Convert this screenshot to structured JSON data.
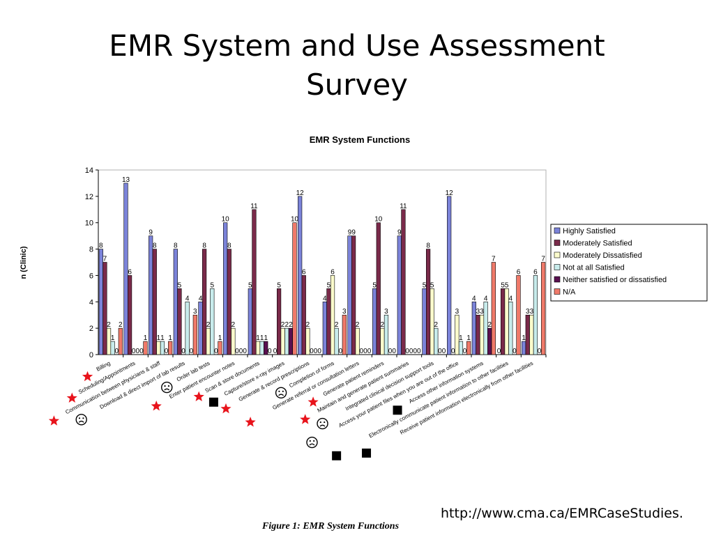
{
  "slide": {
    "title_line1": "EMR System and Use Assessment",
    "title_line2": "Survey",
    "caption": "Figure 1:  EMR System Functions",
    "source": "http://www.cma.ca/EMRCaseStudies."
  },
  "colors": {
    "highly_satisfied": "#7b83d9",
    "moderately_satisfied": "#7a2a4a",
    "moderately_dissatisfied": "#fbfbcc",
    "not_at_all_satisfied": "#c8ecec",
    "neither": "#5a1050",
    "na": "#f07a6a",
    "star": "#e8131b"
  },
  "chart_data": {
    "type": "bar",
    "title": "EMR System Functions",
    "ylabel": "n (Clinic)",
    "ylim": [
      0,
      14
    ],
    "yticks": [
      0,
      2,
      4,
      6,
      8,
      10,
      12,
      14
    ],
    "legend_position": "right",
    "categories": [
      "Billing",
      "Scheduling/Appointments",
      "Communication between physicians & staff",
      "Download & direct import of lab results",
      "Order lab tests",
      "Enter patient encounter notes",
      "Scan & store documents",
      "Capture/store x-ray images",
      "Generate & record prescriptions",
      "Completion of forms",
      "Generate referral or consultation letters",
      "Generate patient reminders",
      "Maintain and generate patient summaries",
      "Integrated clinical decision support tools",
      "Access your patient files when you are out of the office",
      "Access other information systems",
      "Electronically communicate patient information to other facilities",
      "Receive patient information electronically from other facilities"
    ],
    "category_markers": [
      "star",
      "star",
      "star",
      "frown",
      "frown",
      "star",
      "star",
      "square",
      "star",
      "frown",
      "star",
      "star",
      "star",
      "frown",
      "frown",
      "square",
      "square",
      "square"
    ],
    "series": [
      {
        "name": "Highly Satisfied",
        "values": [
          8,
          13,
          9,
          8,
          4,
          10,
          5,
          0,
          12,
          4,
          9,
          5,
          9,
          5,
          12,
          4,
          0,
          1
        ]
      },
      {
        "name": "Moderately Satisfied",
        "values": [
          7,
          6,
          8,
          5,
          8,
          8,
          11,
          5,
          6,
          5,
          9,
          10,
          11,
          8,
          0,
          3,
          5,
          3
        ]
      },
      {
        "name": "Moderately Dissatisfied",
        "values": [
          2,
          0,
          1,
          0,
          2,
          2,
          1,
          2,
          2,
          6,
          2,
          2,
          0,
          5,
          3,
          3,
          5,
          3
        ]
      },
      {
        "name": "Not at all Satisfied",
        "values": [
          1,
          0,
          1,
          4,
          5,
          0,
          1,
          2,
          0,
          2,
          0,
          3,
          0,
          2,
          1,
          4,
          4,
          6
        ]
      },
      {
        "name": "Neither satisfied or dissatisfied",
        "values": [
          0,
          0,
          0,
          0,
          0,
          0,
          1,
          2,
          0,
          0,
          0,
          0,
          0,
          0,
          0,
          2,
          0,
          0
        ]
      },
      {
        "name": "N/A",
        "values": [
          2,
          1,
          1,
          3,
          1,
          0,
          0,
          10,
          0,
          3,
          0,
          0,
          0,
          0,
          1,
          7,
          6,
          7
        ]
      }
    ]
  }
}
